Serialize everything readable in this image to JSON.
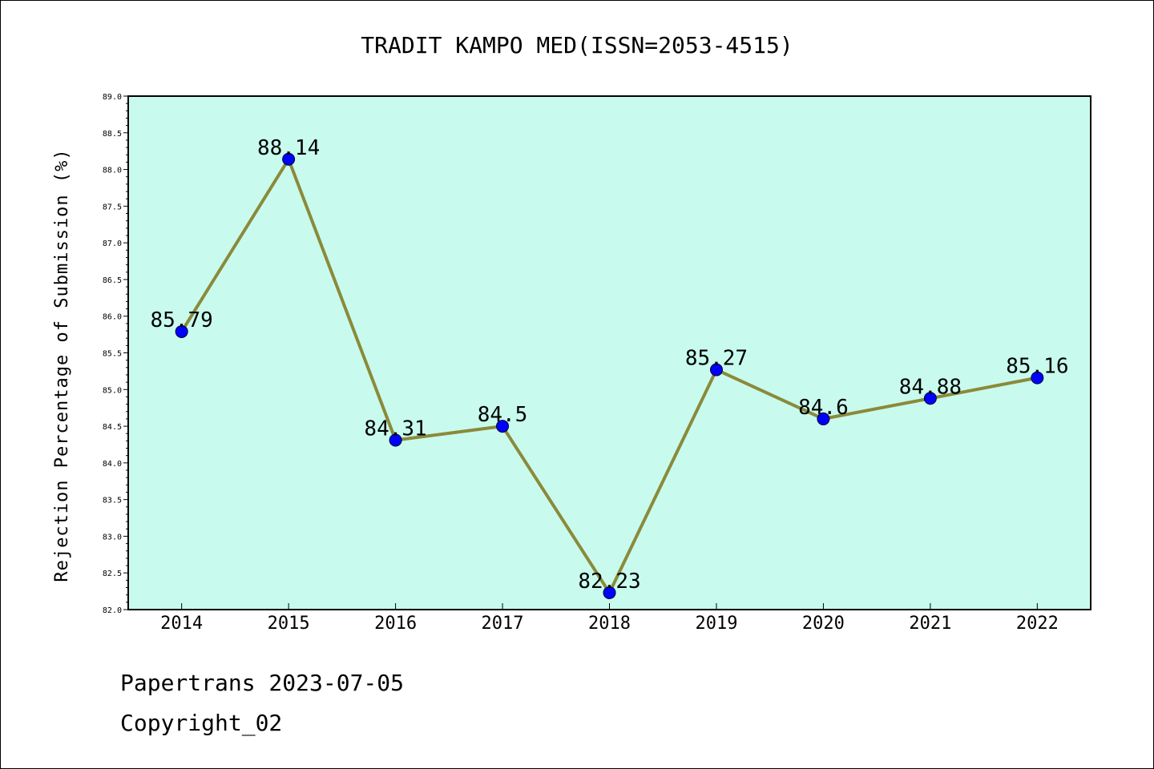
{
  "chart_data": {
    "type": "line",
    "title": "TRADIT KAMPO MED(ISSN=2053-4515)",
    "xlabel": "",
    "ylabel": "Rejection Percentage of Submission (%)",
    "categories": [
      "2014",
      "2015",
      "2016",
      "2017",
      "2018",
      "2019",
      "2020",
      "2021",
      "2022"
    ],
    "values": [
      85.79,
      88.14,
      84.31,
      84.5,
      82.23,
      85.27,
      84.6,
      84.88,
      85.16
    ],
    "data_labels": [
      "85.79",
      "88.14",
      "84.31",
      "84.5",
      "82.23",
      "85.27",
      "84.6",
      "84.88",
      "85.16"
    ],
    "ylim": [
      82.0,
      89.0
    ],
    "yticks": [
      "82.0",
      "82.5",
      "83.0",
      "83.5",
      "84.0",
      "84.5",
      "85.0",
      "85.5",
      "86.0",
      "86.5",
      "87.0",
      "87.5",
      "88.0",
      "88.5",
      "89.0"
    ],
    "grid": false,
    "legend": "none"
  },
  "colors": {
    "plot_background": "#c8fbee",
    "line": "#8b8a3a",
    "marker": "#0000ff"
  },
  "footer": {
    "line1": "Papertrans 2023-07-05",
    "line2": "Copyright_02"
  }
}
